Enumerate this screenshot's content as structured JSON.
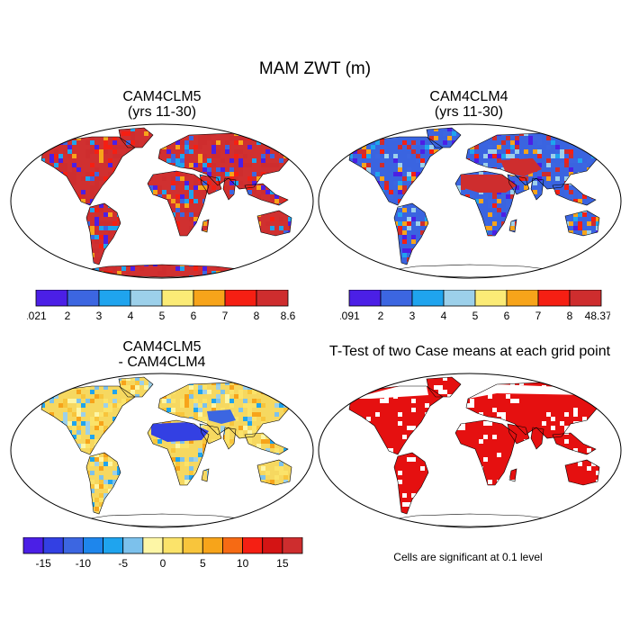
{
  "title": "MAM ZWT (m)",
  "panels": [
    {
      "title_line1": "CAM4CLM5",
      "title_line2": "(yrs 11-30)",
      "fill": "#d03030",
      "scheme": "wet"
    },
    {
      "title_line1": "CAM4CLM4",
      "title_line2": "(yrs 11-30)",
      "fill": "#3a64e0",
      "scheme": "dry"
    },
    {
      "title_line1": "CAM4CLM5",
      "title_line2": "- CAM4CLM4",
      "fill": "#f6d860",
      "scheme": "diff"
    },
    {
      "title_line1": "T-Test of two Case means at each grid point",
      "title_line2": "",
      "fill": "#e51010",
      "scheme": "sig"
    }
  ],
  "colorbars": [
    {
      "name": "clm5-bar",
      "colors": [
        "#4b1fe6",
        "#3c66e1",
        "#1fa4ee",
        "#9cd0ea",
        "#fbeb76",
        "#f7a41a",
        "#f51f13",
        "#ce2d2e"
      ],
      "labels": [
        ".021",
        "2",
        "3",
        "4",
        "5",
        "6",
        "7",
        "8",
        "8.6"
      ]
    },
    {
      "name": "clm4-bar",
      "colors": [
        "#4b1fe6",
        "#3c66e1",
        "#1fa4ee",
        "#9cd0ea",
        "#fbeb76",
        "#f7a41a",
        "#f51f13",
        "#ce2d2e"
      ],
      "labels": [
        ".091",
        "2",
        "3",
        "4",
        "5",
        "6",
        "7",
        "8",
        "48.371"
      ]
    },
    {
      "name": "diff-bar",
      "colors": [
        "#4b1fe6",
        "#3340e3",
        "#3c66e1",
        "#1e86ec",
        "#1fa4ee",
        "#7cc1ec",
        "#fdf6a6",
        "#fbe36a",
        "#f8c53c",
        "#f7a41a",
        "#f66a14",
        "#f51f13",
        "#d41414",
        "#ce2d2e"
      ],
      "labels": [
        "-15",
        "-10",
        "-5",
        "0",
        "5",
        "10",
        "15"
      ]
    }
  ],
  "note": "Cells are significant at 0.1 level"
}
